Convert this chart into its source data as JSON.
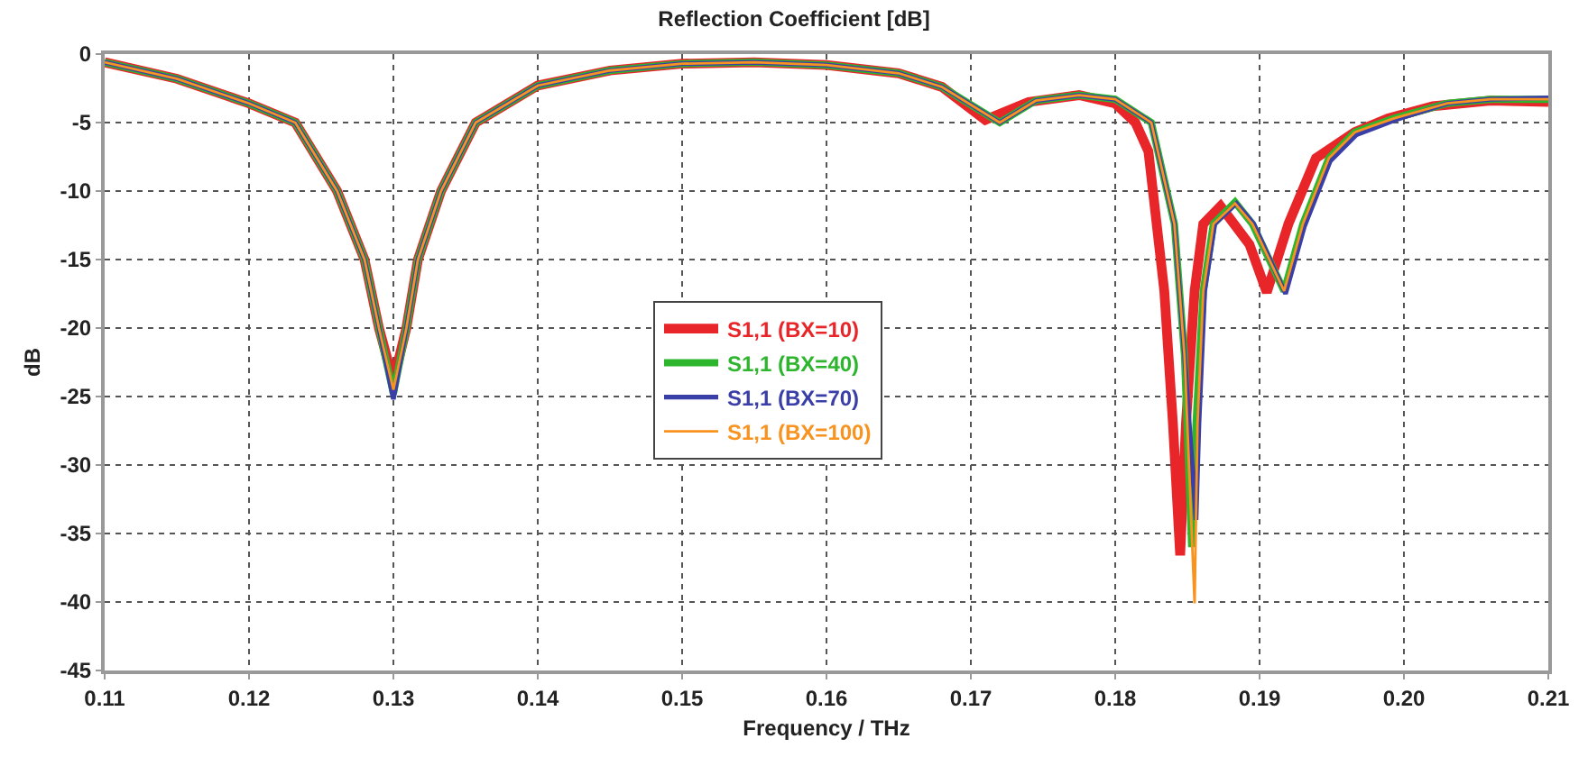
{
  "chart_data": {
    "type": "line",
    "title": "Reflection Coefficient [dB]",
    "xlabel": "Frequency / THz",
    "ylabel": "dB",
    "xlim": [
      0.11,
      0.21
    ],
    "xticks": [
      0.11,
      0.12,
      0.13,
      0.14,
      0.15,
      0.16,
      0.17,
      0.18,
      0.19,
      {
        "value": 0.2,
        "label": "0.20"
      },
      0.21
    ],
    "ylim": [
      -45,
      0
    ],
    "yticks": [
      0,
      -5,
      -10,
      -15,
      -20,
      -25,
      -30,
      -35,
      -40,
      -45
    ],
    "grid": true,
    "legend": "center",
    "marker": "none",
    "line_style": "solid",
    "series": [
      {
        "name": "S1,1 (BX=10)",
        "color": "#e8262a",
        "x": [
          0.11,
          0.115,
          0.12,
          0.1232,
          0.1261,
          0.128,
          0.129,
          0.13,
          0.1309,
          0.1317,
          0.1333,
          0.1357,
          0.14,
          0.145,
          0.15,
          0.155,
          0.16,
          0.165,
          0.168,
          0.171,
          0.174,
          0.1775,
          0.18,
          0.1814,
          0.1823,
          0.1834,
          0.184,
          0.1845,
          0.1849,
          0.1855,
          0.1861,
          0.1873,
          0.1893,
          0.1905,
          0.192,
          0.1939,
          0.1966,
          0.1989,
          0.202,
          0.206,
          0.21
        ],
        "values": [
          -0.6,
          -1.8,
          -3.6,
          -5,
          -10,
          -15,
          -20,
          -23.9,
          -20,
          -15,
          -10,
          -5,
          -2.3,
          -1.2,
          -0.7,
          -0.6,
          -0.8,
          -1.4,
          -2.4,
          -4.8,
          -3.5,
          -3,
          -3.6,
          -5,
          -7.1,
          -17.3,
          -27,
          -36.6,
          -27,
          -17.3,
          -12.4,
          -11.1,
          -13.9,
          -17.4,
          -12.4,
          -7.6,
          -5.7,
          -4.7,
          -3.8,
          -3.4,
          -3.5
        ]
      },
      {
        "name": "S1,1 (BX=40)",
        "color": "#2db52d",
        "x": [
          0.11,
          0.115,
          0.12,
          0.1232,
          0.1261,
          0.128,
          0.129,
          0.13,
          0.1309,
          0.1317,
          0.1333,
          0.1357,
          0.14,
          0.145,
          0.15,
          0.155,
          0.16,
          0.165,
          0.168,
          0.172,
          0.1745,
          0.1775,
          0.18,
          0.1825,
          0.1841,
          0.1848,
          0.1853,
          0.1856,
          0.1861,
          0.1868,
          0.1883,
          0.1895,
          0.1917,
          0.193,
          0.1948,
          0.1966,
          0.1993,
          0.203,
          0.206,
          0.21
        ],
        "values": [
          -0.6,
          -1.8,
          -3.6,
          -5,
          -10,
          -15,
          -20,
          -24.8,
          -20,
          -15,
          -10,
          -5,
          -2.3,
          -1.2,
          -0.7,
          -0.6,
          -0.8,
          -1.4,
          -2.4,
          -5,
          -3.4,
          -3,
          -3.3,
          -5,
          -12.4,
          -22,
          -36,
          -27,
          -17.3,
          -12.4,
          -10.8,
          -12.4,
          -17.3,
          -12.4,
          -7.6,
          -5.7,
          -4.7,
          -3.6,
          -3.3,
          -3.3
        ]
      },
      {
        "name": "S1,1 (BX=70)",
        "color": "#3a3fa8",
        "x": [
          0.11,
          0.115,
          0.12,
          0.1232,
          0.1261,
          0.128,
          0.129,
          0.13,
          0.1309,
          0.1317,
          0.1333,
          0.1357,
          0.14,
          0.145,
          0.15,
          0.155,
          0.16,
          0.165,
          0.168,
          0.172,
          0.1745,
          0.1775,
          0.18,
          0.1825,
          0.1841,
          0.1848,
          0.1856,
          0.1858,
          0.1862,
          0.1869,
          0.1884,
          0.1896,
          0.1918,
          0.1931,
          0.1949,
          0.1967,
          0.1994,
          0.203,
          0.206,
          0.21
        ],
        "values": [
          -0.6,
          -1.8,
          -3.6,
          -5,
          -10,
          -15,
          -20,
          -25.2,
          -20,
          -15,
          -10,
          -5,
          -2.3,
          -1.2,
          -0.7,
          -0.6,
          -0.8,
          -1.4,
          -2.4,
          -5,
          -3.4,
          -3,
          -3.3,
          -5,
          -12.4,
          -22,
          -34,
          -27,
          -17.3,
          -12.4,
          -10.9,
          -12.4,
          -17.5,
          -12.6,
          -7.8,
          -5.9,
          -4.8,
          -3.6,
          -3.3,
          -3.2
        ]
      },
      {
        "name": "S1,1 (BX=100)",
        "color": "#f7931e",
        "x": [
          0.11,
          0.115,
          0.12,
          0.1232,
          0.1261,
          0.128,
          0.129,
          0.13,
          0.1309,
          0.1317,
          0.1333,
          0.1357,
          0.14,
          0.145,
          0.15,
          0.155,
          0.16,
          0.165,
          0.168,
          0.172,
          0.1745,
          0.1775,
          0.18,
          0.1825,
          0.1841,
          0.1848,
          0.1855,
          0.1857,
          0.1861,
          0.1868,
          0.1883,
          0.1895,
          0.1917,
          0.193,
          0.1948,
          0.1966,
          0.1993,
          0.203,
          0.206,
          0.21
        ],
        "values": [
          -0.6,
          -1.8,
          -3.6,
          -5,
          -10,
          -15,
          -20,
          -24.5,
          -20,
          -15,
          -10,
          -5,
          -2.3,
          -1.2,
          -0.7,
          -0.6,
          -0.8,
          -1.4,
          -2.4,
          -5,
          -3.4,
          -3,
          -3.3,
          -5,
          -12.4,
          -22,
          -40.1,
          -27,
          -17.3,
          -12.4,
          -10.9,
          -12.4,
          -17.3,
          -12.4,
          -7.6,
          -5.7,
          -4.7,
          -3.6,
          -3.3,
          -3.3
        ]
      }
    ]
  }
}
